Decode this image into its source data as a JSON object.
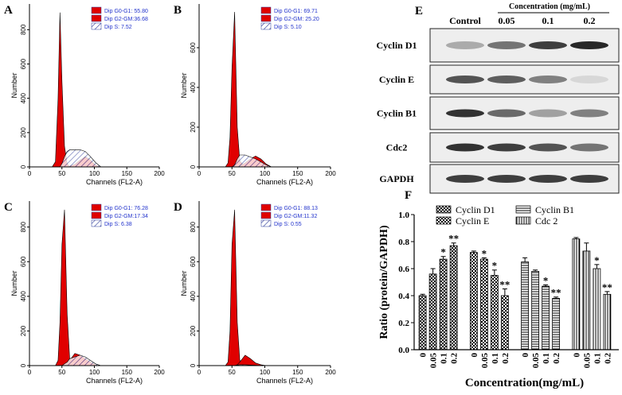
{
  "chart_data": [
    {
      "type": "area",
      "panel": "A",
      "xlabel": "Channels (FL2-A)",
      "ylabel": "Number",
      "x": [
        35,
        40,
        44,
        47,
        50,
        54,
        58,
        62,
        70,
        78,
        86,
        94,
        102,
        110
      ],
      "xlim": [
        0,
        200
      ],
      "xticks": [
        0,
        50,
        100,
        150,
        200
      ],
      "ylim": [
        0,
        950
      ],
      "yticks": [
        0,
        200,
        400,
        600,
        800
      ],
      "series": [
        {
          "name": "Dip G0-G1: 55.80",
          "color": "#e00000",
          "values": [
            0,
            30,
            400,
            900,
            500,
            120,
            20,
            0,
            0,
            0,
            0,
            0,
            0,
            0
          ]
        },
        {
          "name": "Dip G2-GM:36.68",
          "color": "#e00000",
          "values": [
            0,
            0,
            0,
            0,
            0,
            0,
            0,
            5,
            15,
            40,
            60,
            40,
            10,
            0
          ]
        },
        {
          "name": "Dip S: 7.52",
          "color": "#2a3a9a",
          "pattern": "hatch",
          "values": [
            0,
            0,
            0,
            0,
            20,
            60,
            90,
            100,
            100,
            100,
            90,
            60,
            25,
            0
          ]
        }
      ]
    },
    {
      "type": "area",
      "panel": "B",
      "xlabel": "Channels (FL2-A)",
      "ylabel": "Number",
      "x": [
        35,
        40,
        44,
        47,
        50,
        54,
        58,
        62,
        70,
        78,
        86,
        94,
        102,
        110
      ],
      "xlim": [
        0,
        200
      ],
      "xticks": [
        0,
        50,
        100,
        150,
        200
      ],
      "ylim": [
        0,
        820
      ],
      "yticks": [
        0,
        200,
        400,
        600
      ],
      "series": [
        {
          "name": "Dip G0-G1: 69.71",
          "color": "#e00000",
          "values": [
            0,
            0,
            20,
            150,
            500,
            780,
            200,
            30,
            0,
            0,
            0,
            0,
            0,
            0
          ]
        },
        {
          "name": "Dip G2-GM: 25.20",
          "color": "#e00000",
          "values": [
            0,
            0,
            0,
            0,
            0,
            0,
            0,
            5,
            20,
            40,
            55,
            40,
            15,
            0
          ]
        },
        {
          "name": "Dip S: 5.10",
          "color": "#2a3a9a",
          "pattern": "hatch",
          "values": [
            0,
            0,
            0,
            0,
            0,
            10,
            40,
            60,
            60,
            50,
            40,
            25,
            10,
            0
          ]
        }
      ]
    },
    {
      "type": "area",
      "panel": "C",
      "xlabel": "Channels (FL2-A)",
      "ylabel": "Number",
      "x": [
        35,
        40,
        44,
        47,
        50,
        54,
        58,
        62,
        70,
        78,
        86,
        94,
        102,
        110
      ],
      "xlim": [
        0,
        200
      ],
      "xticks": [
        0,
        50,
        100,
        150,
        200
      ],
      "ylim": [
        0,
        950
      ],
      "yticks": [
        0,
        200,
        400,
        600,
        800
      ],
      "series": [
        {
          "name": "Dip G0-G1: 76.28",
          "color": "#e00000",
          "values": [
            0,
            0,
            30,
            250,
            700,
            900,
            300,
            40,
            0,
            0,
            0,
            0,
            0,
            0
          ]
        },
        {
          "name": "Dip G2-GM:17.34",
          "color": "#e00000",
          "values": [
            0,
            0,
            0,
            0,
            0,
            0,
            5,
            30,
            70,
            60,
            40,
            20,
            5,
            0
          ]
        },
        {
          "name": "Dip S: 6.38",
          "color": "#2a3a9a",
          "pattern": "hatch",
          "values": [
            0,
            0,
            0,
            0,
            0,
            10,
            20,
            40,
            50,
            60,
            50,
            30,
            10,
            0
          ]
        }
      ]
    },
    {
      "type": "area",
      "panel": "D",
      "xlabel": "Channels (FL2-A)",
      "ylabel": "Number",
      "x": [
        35,
        40,
        44,
        47,
        50,
        54,
        58,
        62,
        70,
        78,
        86,
        94,
        102,
        110
      ],
      "xlim": [
        0,
        200
      ],
      "xticks": [
        0,
        50,
        100,
        150,
        200
      ],
      "ylim": [
        0,
        950
      ],
      "yticks": [
        0,
        200,
        400,
        600,
        800
      ],
      "series": [
        {
          "name": "Dip G0-G1: 88.13",
          "color": "#e00000",
          "values": [
            0,
            0,
            20,
            200,
            700,
            900,
            250,
            30,
            0,
            0,
            0,
            0,
            0,
            0
          ]
        },
        {
          "name": "Dip G2-GM:11.32",
          "color": "#e00000",
          "values": [
            0,
            0,
            0,
            0,
            0,
            0,
            5,
            20,
            60,
            40,
            15,
            5,
            0,
            0
          ]
        },
        {
          "name": "Dip S: 0.55",
          "color": "#2a3a9a",
          "pattern": "hatch",
          "values": [
            0,
            0,
            0,
            0,
            0,
            0,
            3,
            5,
            5,
            3,
            2,
            0,
            0,
            0
          ]
        }
      ]
    },
    {
      "type": "bar",
      "panel": "F",
      "xlabel": "Concentration(mg/mL)",
      "ylabel": "Ratio (protein/GAPDH)",
      "categories": [
        "0",
        "0.05",
        "0.1",
        "0.2"
      ],
      "ylim": [
        0,
        1.0
      ],
      "yticks": [
        {
          "value": 0,
          "label": "0.0"
        },
        {
          "value": 0.2,
          "label": "0.2"
        },
        {
          "value": 0.4,
          "label": "0.4"
        },
        {
          "value": 0.6,
          "label": "0.6"
        },
        {
          "value": 0.8,
          "label": "0.8"
        },
        {
          "value": 1.0,
          "label": "1.0"
        }
      ],
      "series": [
        {
          "name": "Cyclin D1",
          "pattern": "crosshatch",
          "values": [
            0.4,
            0.56,
            0.67,
            0.77
          ],
          "errors": [
            0.01,
            0.04,
            0.02,
            0.02
          ],
          "annotations": [
            null,
            null,
            "*",
            "**"
          ]
        },
        {
          "name": "Cyclin E",
          "pattern": "checker",
          "values": [
            0.72,
            0.67,
            0.55,
            0.4
          ],
          "errors": [
            0.01,
            0.01,
            0.04,
            0.05
          ],
          "annotations": [
            null,
            "*",
            "*",
            "**"
          ]
        },
        {
          "name": "Cyclin B1",
          "pattern": "hlines",
          "values": [
            0.65,
            0.58,
            0.47,
            0.38
          ],
          "errors": [
            0.03,
            0.01,
            0.01,
            0.01
          ],
          "annotations": [
            null,
            null,
            "*",
            "**"
          ]
        },
        {
          "name": "Cdc 2",
          "pattern": "vlines",
          "values": [
            0.82,
            0.73,
            0.6,
            0.41
          ],
          "errors": [
            0.01,
            0.06,
            0.03,
            0.02
          ],
          "annotations": [
            null,
            null,
            "*",
            "**"
          ]
        }
      ]
    }
  ],
  "blot": {
    "panel": "E",
    "header": "Concentration (mg/mL)",
    "columns": [
      "Control",
      "0.05",
      "0.1",
      "0.2"
    ],
    "rows": [
      "Cyclin D1",
      "Cyclin E",
      "Cyclin B1",
      "Cdc2",
      "GAPDH"
    ]
  }
}
